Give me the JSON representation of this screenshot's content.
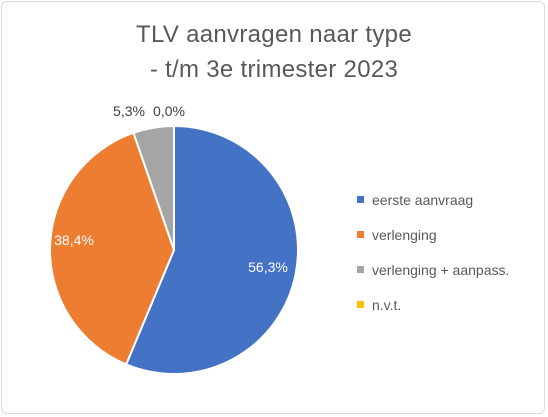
{
  "chart_data": {
    "type": "pie",
    "title_line1": "TLV aanvragen naar type",
    "title_line2": "- t/m 3e trimester 2023",
    "categories": [
      "eerste aanvraag",
      "verlenging",
      "verlenging + aanpass.",
      "n.v.t."
    ],
    "values": [
      56.3,
      38.4,
      5.3,
      0.0
    ],
    "data_labels": [
      "56,3%",
      "38,4%",
      "5,3%",
      "0,0%"
    ],
    "colors": [
      "#4472c4",
      "#ed7d31",
      "#a5a5a5",
      "#ffc000"
    ],
    "legend_position": "right"
  }
}
